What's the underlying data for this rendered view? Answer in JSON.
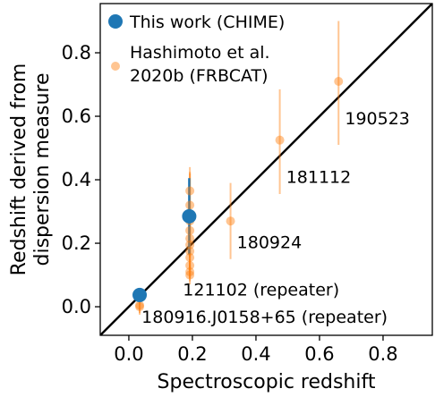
{
  "chart_data": {
    "type": "scatter",
    "xlabel": "Spectroscopic redshift",
    "ylabel_lines": [
      "Redshift derived from",
      "dispersion measure"
    ],
    "xlim": [
      -0.09,
      0.955
    ],
    "ylim": [
      -0.09,
      0.955
    ],
    "xticks": [
      0.0,
      0.2,
      0.4,
      0.6,
      0.8
    ],
    "yticks": [
      0.0,
      0.2,
      0.4,
      0.6,
      0.8
    ],
    "xtick_labels": [
      "0.0",
      "0.2",
      "0.4",
      "0.6",
      "0.8"
    ],
    "ytick_labels": [
      "0.0",
      "0.2",
      "0.4",
      "0.6",
      "0.8"
    ],
    "grid": false,
    "legend_position": "top-left",
    "identity_line": true,
    "colors": {
      "chime": "#1f77b4",
      "hashimoto": "#ff7f0e",
      "line": "#000000"
    },
    "series": [
      {
        "name": "This work (CHIME)",
        "marker_size": "large",
        "points": [
          {
            "x": 0.034,
            "y": 0.037,
            "yerr_low": 0.015,
            "yerr_high": 0.015
          },
          {
            "x": 0.19,
            "y": 0.285,
            "yerr_low": 0.12,
            "yerr_high": 0.12
          }
        ]
      },
      {
        "name": "Hashimoto et al.",
        "name_line2": "2020b (FRBCAT)",
        "marker_size": "small",
        "points": [
          {
            "x": 0.66,
            "y": 0.71,
            "yerr_low": 0.2,
            "yerr_high": 0.19
          },
          {
            "x": 0.475,
            "y": 0.525,
            "yerr_low": 0.17,
            "yerr_high": 0.16
          },
          {
            "x": 0.32,
            "y": 0.27,
            "yerr_low": 0.12,
            "yerr_high": 0.12
          },
          {
            "x": 0.192,
            "y": 0.365,
            "yerr_low": 0.07,
            "yerr_high": 0.06
          },
          {
            "x": 0.192,
            "y": 0.32,
            "yerr_low": 0.06,
            "yerr_high": 0.1
          },
          {
            "x": 0.192,
            "y": 0.27,
            "yerr_low": 0.05,
            "yerr_high": 0.17
          },
          {
            "x": 0.192,
            "y": 0.24,
            "yerr_low": 0.05,
            "yerr_high": 0.05
          },
          {
            "x": 0.192,
            "y": 0.215,
            "yerr_low": 0.05,
            "yerr_high": 0.05
          },
          {
            "x": 0.192,
            "y": 0.195,
            "yerr_low": 0.04,
            "yerr_high": 0.06
          },
          {
            "x": 0.192,
            "y": 0.175,
            "yerr_low": 0.05,
            "yerr_high": 0.04
          },
          {
            "x": 0.192,
            "y": 0.155,
            "yerr_low": 0.04,
            "yerr_high": 0.04
          },
          {
            "x": 0.192,
            "y": 0.13,
            "yerr_low": 0.04,
            "yerr_high": 0.05
          },
          {
            "x": 0.192,
            "y": 0.11,
            "yerr_low": 0.03,
            "yerr_high": 0.04
          },
          {
            "x": 0.192,
            "y": 0.1,
            "yerr_low": 0.03,
            "yerr_high": 0.03
          },
          {
            "x": 0.034,
            "y": 0.005,
            "yerr_low": 0.03,
            "yerr_high": 0.02
          },
          {
            "x": 0.034,
            "y": 0.0,
            "yerr_low": 0.02,
            "yerr_high": 0.03
          }
        ]
      }
    ],
    "annotations": [
      {
        "text": "190523",
        "x": 0.68,
        "y": 0.575
      },
      {
        "text": "181112",
        "x": 0.495,
        "y": 0.39
      },
      {
        "text": "180924",
        "x": 0.34,
        "y": 0.185
      },
      {
        "text": "121102 (repeater)",
        "x": 0.17,
        "y": 0.035
      },
      {
        "text": "180916.J0158+65 (repeater)",
        "x": 0.04,
        "y": -0.05
      }
    ]
  }
}
